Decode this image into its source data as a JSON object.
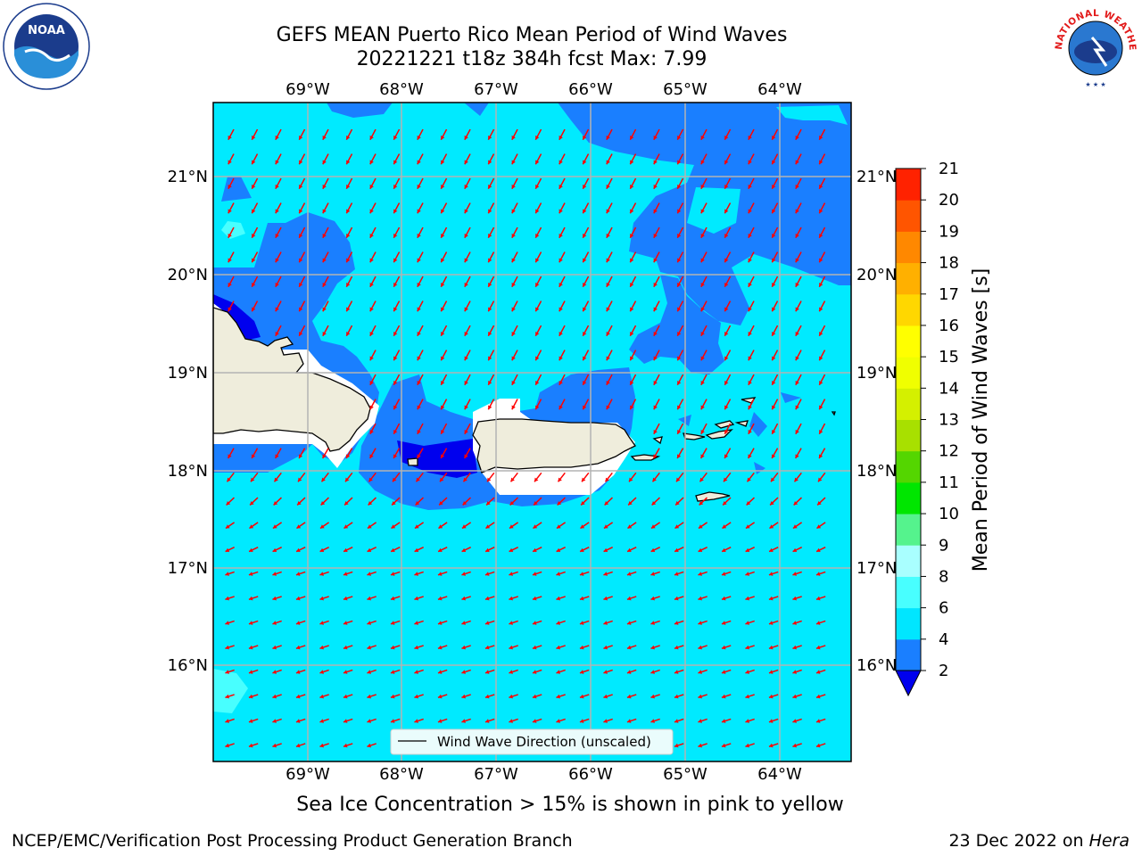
{
  "title": {
    "line1": "GEFS MEAN Puerto Rico Mean Period of Wind Waves",
    "line2": "20221221 t18z 384h fcst   Max: 7.99"
  },
  "map": {
    "lon_labels": [
      "69°W",
      "68°W",
      "67°W",
      "66°W",
      "65°W",
      "64°W"
    ],
    "lat_labels": [
      "21°N",
      "20°N",
      "19°N",
      "18°N",
      "17°N",
      "16°N"
    ],
    "legend_label": "Wind Wave Direction (unscaled)",
    "arrow_color": "#ff0000",
    "land_color": "#efeddc"
  },
  "colorbar": {
    "label": "Mean Period of Wind Waves [s]",
    "ticks": [
      "2",
      "4",
      "6",
      "8",
      "9",
      "10",
      "11",
      "12",
      "13",
      "14",
      "15",
      "16",
      "17",
      "18",
      "19",
      "20",
      "21"
    ],
    "colors": [
      "#1a7fff",
      "#00e6ff",
      "#48ffff",
      "#a9ffff",
      "#55f38d",
      "#00e600",
      "#54d600",
      "#a8e000",
      "#d4f000",
      "#f0ff00",
      "#ffff00",
      "#ffd700",
      "#ffb000",
      "#ff8800",
      "#ff5500",
      "#ff2200"
    ],
    "under_color": "#0000ee"
  },
  "caption": "Sea Ice Concentration > 15% is shown in pink to yellow",
  "footer": {
    "left": "NCEP/EMC/Verification Post Processing Product Generation Branch",
    "right_date": "23 Dec 2022 on ",
    "right_machine": "Hera"
  },
  "logos": {
    "noaa_text": "NOAA",
    "nws_text": "NATIONAL WEATHER SERVICE"
  }
}
